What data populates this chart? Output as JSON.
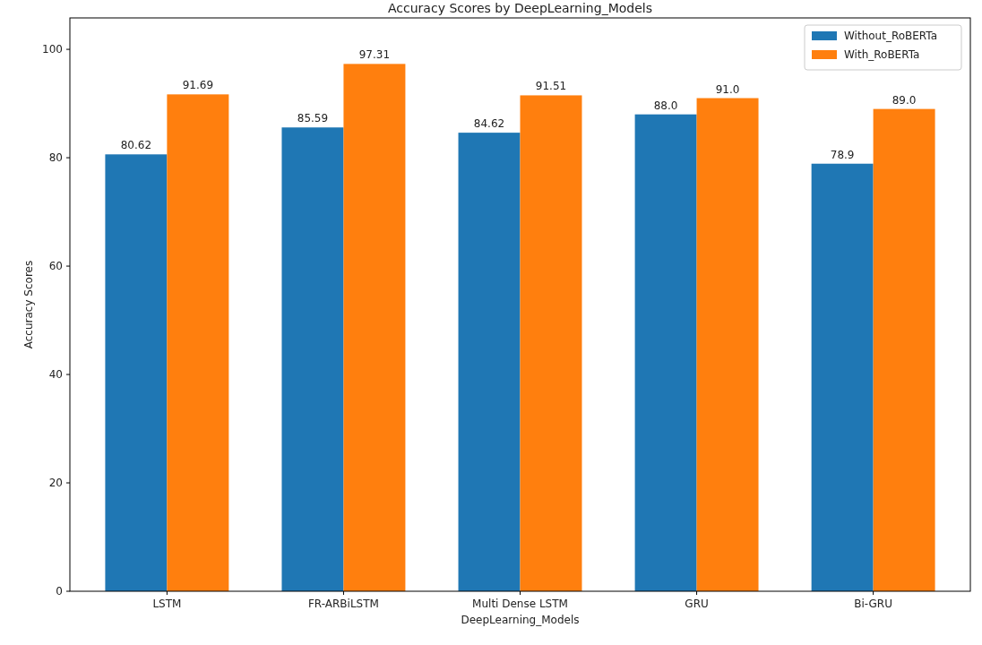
{
  "chart_data": {
    "type": "bar",
    "title": "Accuracy Scores by DeepLearning_Models",
    "xlabel": "DeepLearning_Models",
    "ylabel": "Accuracy Scores",
    "categories": [
      "LSTM",
      "FR-ARBiLSTM",
      "Multi Dense LSTM",
      "GRU",
      "Bi-GRU"
    ],
    "series": [
      {
        "name": "Without_RoBERTa",
        "color": "#1f77b4",
        "values": [
          80.62,
          85.59,
          84.62,
          88.0,
          78.9
        ],
        "value_labels": [
          "80.62",
          "85.59",
          "84.62",
          "88.0",
          "78.9"
        ]
      },
      {
        "name": "With_RoBERTa",
        "color": "#ff7f0e",
        "values": [
          91.69,
          97.31,
          91.51,
          91.0,
          89.0
        ],
        "value_labels": [
          "91.69",
          "97.31",
          "91.51",
          "91.0",
          "89.0"
        ]
      }
    ],
    "ylim": [
      0,
      105.8
    ],
    "yticks": [
      0,
      20,
      40,
      60,
      80,
      100
    ],
    "grid": false,
    "legend": "top right"
  }
}
